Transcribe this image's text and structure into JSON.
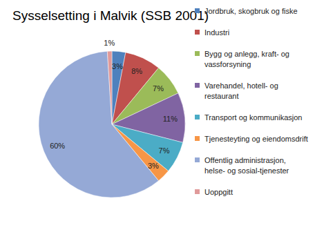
{
  "chart_data": {
    "type": "pie",
    "title": "Sysselsetting i Malvik (SSB 2001)",
    "categories": [
      "Jordbruk, skogbruk og fiske",
      "Industri",
      "Bygg og anlegg, kraft- og vassforsyning",
      "Varehandel, hotell- og restaurant",
      "Transport og kommunikasjon",
      "Tjenesteyting og eiendomsdrift",
      "Offentlig administrasjon, helse- og sosial-tjenester",
      "Uoppgitt"
    ],
    "values": [
      3,
      8,
      7,
      11,
      7,
      3,
      60,
      1
    ],
    "value_labels": [
      "3%",
      "8%",
      "7%",
      "11%",
      "7%",
      "3%",
      "60%",
      "1%"
    ],
    "colors": [
      "#4f81bd",
      "#c0504d",
      "#9bbb59",
      "#8064a2",
      "#4bacc6",
      "#f79646",
      "#95a9d6",
      "#e09a9a"
    ],
    "data_labels": true,
    "legend": "right"
  }
}
